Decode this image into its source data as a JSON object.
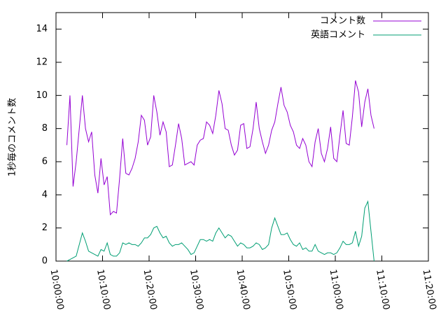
{
  "chart_data": {
    "type": "line",
    "ylabel": "1秒毎のコメント数",
    "x": [
      "10:02:20",
      "10:03:00",
      "10:03:40",
      "10:04:20",
      "10:05:00",
      "10:05:40",
      "10:06:20",
      "10:07:00",
      "10:07:40",
      "10:08:20",
      "10:09:00",
      "10:09:40",
      "10:10:20",
      "10:11:00",
      "10:11:40",
      "10:12:20",
      "10:13:00",
      "10:13:40",
      "10:14:20",
      "10:15:00",
      "10:15:40",
      "10:16:20",
      "10:17:00",
      "10:17:40",
      "10:18:20",
      "10:19:00",
      "10:19:40",
      "10:20:20",
      "10:21:00",
      "10:21:40",
      "10:22:20",
      "10:23:00",
      "10:23:40",
      "10:24:20",
      "10:25:00",
      "10:25:40",
      "10:26:20",
      "10:27:00",
      "10:27:40",
      "10:28:20",
      "10:29:00",
      "10:29:40",
      "10:30:20",
      "10:31:00",
      "10:31:40",
      "10:32:20",
      "10:33:00",
      "10:33:40",
      "10:34:20",
      "10:35:00",
      "10:35:40",
      "10:36:20",
      "10:37:00",
      "10:37:40",
      "10:38:20",
      "10:39:00",
      "10:39:40",
      "10:40:20",
      "10:41:00",
      "10:41:40",
      "10:42:20",
      "10:43:00",
      "10:43:40",
      "10:44:20",
      "10:45:00",
      "10:45:40",
      "10:46:20",
      "10:47:00",
      "10:47:40",
      "10:48:20",
      "10:49:00",
      "10:49:40",
      "10:50:20",
      "10:51:00",
      "10:51:40",
      "10:52:20",
      "10:53:00",
      "10:53:40",
      "10:54:20",
      "10:55:00",
      "10:55:40",
      "10:56:20",
      "10:57:00",
      "10:57:40",
      "10:58:20",
      "10:59:00",
      "10:59:40",
      "11:00:20",
      "11:01:00",
      "11:01:40",
      "11:02:20",
      "11:03:00",
      "11:03:40",
      "11:04:20",
      "11:05:00",
      "11:05:40",
      "11:06:20",
      "11:07:00",
      "11:07:40",
      "11:08:20"
    ],
    "series": [
      {
        "name": "コメント数",
        "color": "#9400d3",
        "values": [
          7.0,
          10.0,
          4.5,
          6.0,
          8.0,
          10.0,
          8.0,
          7.2,
          7.8,
          5.2,
          4.1,
          6.2,
          4.6,
          5.1,
          2.8,
          3.0,
          2.9,
          5.0,
          7.4,
          5.3,
          5.2,
          5.6,
          6.2,
          7.2,
          8.8,
          8.5,
          7.0,
          7.5,
          10.0,
          9.0,
          7.6,
          8.4,
          7.8,
          5.7,
          5.8,
          7.0,
          8.3,
          7.4,
          5.8,
          5.9,
          6.0,
          5.8,
          7.0,
          7.3,
          7.4,
          8.4,
          8.2,
          7.7,
          8.8,
          10.3,
          9.5,
          8.0,
          7.9,
          7.0,
          6.4,
          6.7,
          8.2,
          8.3,
          6.8,
          6.9,
          8.0,
          9.6,
          8.0,
          7.2,
          6.5,
          7.0,
          7.9,
          8.4,
          9.5,
          10.5,
          9.4,
          9.0,
          8.2,
          7.8,
          7.0,
          6.8,
          7.4,
          7.0,
          6.0,
          5.7,
          7.2,
          8.0,
          6.5,
          6.0,
          6.8,
          8.1,
          6.2,
          6.0,
          7.6,
          9.1,
          7.1,
          7.0,
          8.7,
          10.9,
          10.2,
          8.1,
          9.6,
          10.4,
          8.8,
          8.0
        ]
      },
      {
        "name": "英語コメント",
        "color": "#009e73",
        "values": [
          0.0,
          0.1,
          0.2,
          0.3,
          1.0,
          1.7,
          1.2,
          0.6,
          0.5,
          0.4,
          0.3,
          0.7,
          0.6,
          1.1,
          0.4,
          0.3,
          0.3,
          0.5,
          1.1,
          1.0,
          1.1,
          1.0,
          1.0,
          0.9,
          1.1,
          1.4,
          1.4,
          1.6,
          2.0,
          2.1,
          1.7,
          1.4,
          1.5,
          1.1,
          0.9,
          1.0,
          1.0,
          1.1,
          0.9,
          0.7,
          0.4,
          0.5,
          0.9,
          1.3,
          1.3,
          1.2,
          1.3,
          1.2,
          1.7,
          2.0,
          1.7,
          1.4,
          1.6,
          1.5,
          1.2,
          0.9,
          1.1,
          1.0,
          0.8,
          0.8,
          0.9,
          1.1,
          1.0,
          0.7,
          0.8,
          1.0,
          2.0,
          2.6,
          2.1,
          1.6,
          1.6,
          1.7,
          1.3,
          1.0,
          0.9,
          1.1,
          0.7,
          0.8,
          0.6,
          0.6,
          1.0,
          0.6,
          0.5,
          0.4,
          0.5,
          0.5,
          0.4,
          0.5,
          0.8,
          1.2,
          1.0,
          1.0,
          1.1,
          1.8,
          0.9,
          1.5,
          3.2,
          3.6,
          1.8,
          0.0
        ]
      }
    ],
    "xlim": [
      "10:00:00",
      "11:20:00"
    ],
    "xticks": [
      "10:00:00",
      "10:10:00",
      "10:20:00",
      "10:30:00",
      "10:40:00",
      "10:50:00",
      "11:00:00",
      "11:10:00",
      "11:20:00"
    ],
    "ylim": [
      0,
      15
    ],
    "yticks": [
      0,
      2,
      4,
      6,
      8,
      10,
      12,
      14
    ],
    "legend": "upper right"
  }
}
